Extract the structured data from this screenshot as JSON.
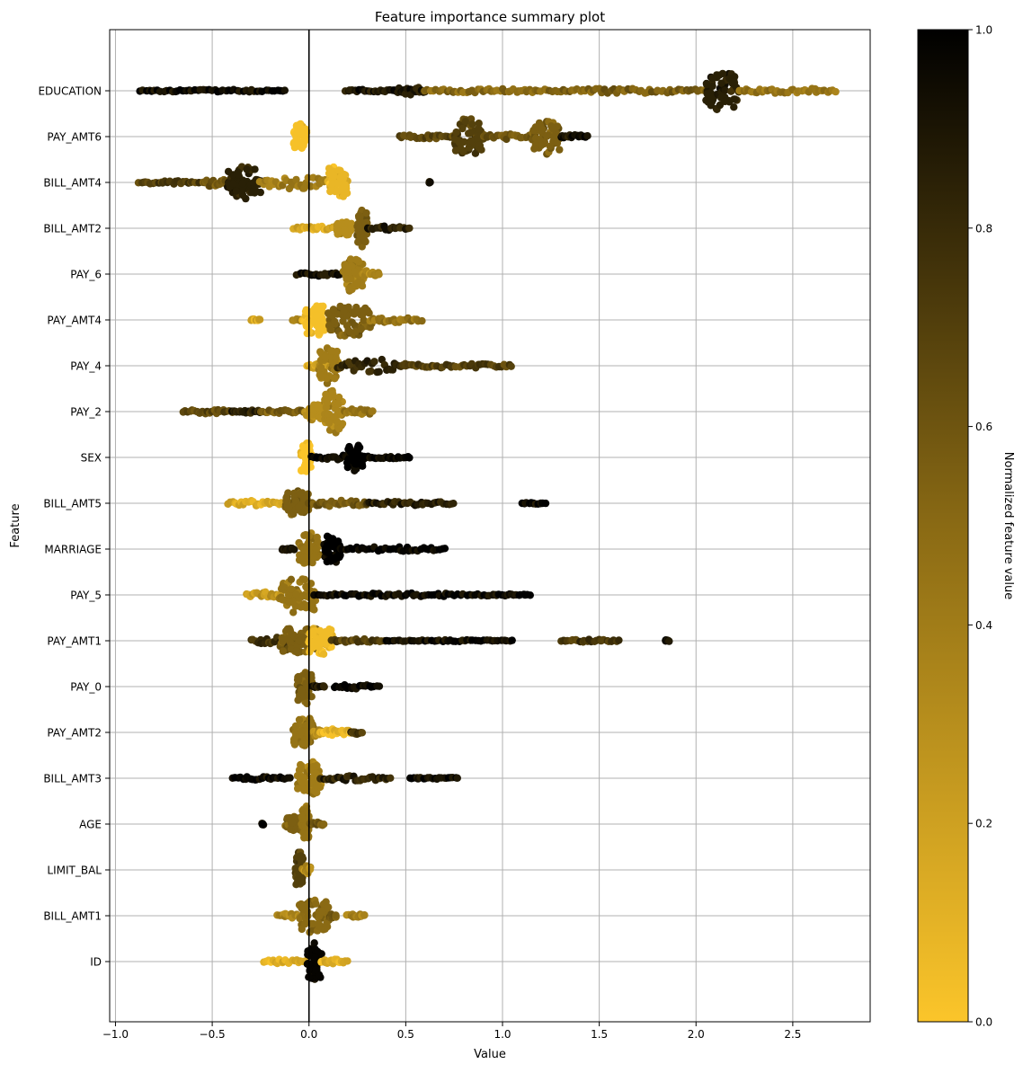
{
  "chart_data": {
    "type": "scatter",
    "title": "Feature importance summary plot",
    "xlabel": "Value",
    "ylabel": "Feature",
    "xlim": [
      -1.03,
      2.9
    ],
    "xticks": [
      -1.0,
      -0.5,
      0.0,
      0.5,
      1.0,
      1.5,
      2.0,
      2.5
    ],
    "xtick_labels": [
      "−1.0",
      "−0.5",
      "0.0",
      "0.5",
      "1.0",
      "1.5",
      "2.0",
      "2.5"
    ],
    "grid": true,
    "zero_line": 0.0,
    "colormap": {
      "low": "#fbc52a",
      "mid": "#8a6a14",
      "high": "#000000"
    },
    "colorbar": {
      "label": "Normalized feature value",
      "range": [
        0.0,
        1.0
      ],
      "ticks": [
        0.0,
        0.2,
        0.4,
        0.6,
        0.8,
        1.0
      ],
      "tick_labels": [
        "0.0",
        "0.2",
        "0.4",
        "0.6",
        "0.8",
        "1.0"
      ]
    },
    "features": [
      {
        "name": "EDUCATION",
        "clusters": [
          {
            "x": [
              -0.87,
              -0.12
            ],
            "v": 0.95,
            "w": 0.03
          },
          {
            "x": [
              0.19,
              0.45
            ],
            "v": 0.9,
            "w": 0.03
          },
          {
            "x": [
              0.45,
              0.6
            ],
            "v": 0.9,
            "w": 0.1
          },
          {
            "x": [
              0.6,
              1.3
            ],
            "v": 0.5,
            "w": 0.05
          },
          {
            "x": [
              1.3,
              2.05
            ],
            "v": 0.55,
            "w": 0.06
          },
          {
            "x": [
              2.05,
              2.22
            ],
            "v": 0.85,
            "w": 0.5
          },
          {
            "x": [
              2.22,
              2.72
            ],
            "v": 0.45,
            "w": 0.06
          }
        ]
      },
      {
        "name": "PAY_AMT6",
        "clusters": [
          {
            "x": [
              -0.08,
              -0.01
            ],
            "v": 0.02,
            "w": 0.35
          },
          {
            "x": [
              0.47,
              0.75
            ],
            "v": 0.65,
            "w": 0.05
          },
          {
            "x": [
              0.75,
              0.9
            ],
            "v": 0.7,
            "w": 0.45
          },
          {
            "x": [
              0.9,
              1.15
            ],
            "v": 0.6,
            "w": 0.06
          },
          {
            "x": [
              1.15,
              1.3
            ],
            "v": 0.55,
            "w": 0.4
          },
          {
            "x": [
              1.3,
              1.44
            ],
            "v": 0.9,
            "w": 0.04
          }
        ]
      },
      {
        "name": "BILL_AMT4",
        "clusters": [
          {
            "x": [
              -0.88,
              -0.55
            ],
            "v": 0.7,
            "w": 0.04
          },
          {
            "x": [
              -0.55,
              -0.42
            ],
            "v": 0.6,
            "w": 0.1
          },
          {
            "x": [
              -0.42,
              -0.25
            ],
            "v": 0.85,
            "w": 0.38
          },
          {
            "x": [
              -0.25,
              0.1
            ],
            "v": 0.4,
            "w": 0.15
          },
          {
            "x": [
              0.1,
              0.2
            ],
            "v": 0.08,
            "w": 0.42
          },
          {
            "x": [
              0.62,
              0.63
            ],
            "v": 0.9,
            "w": 0.02
          }
        ]
      },
      {
        "name": "BILL_AMT2",
        "clusters": [
          {
            "x": [
              -0.08,
              0.14
            ],
            "v": 0.15,
            "w": 0.05
          },
          {
            "x": [
              0.14,
              0.22
            ],
            "v": 0.3,
            "w": 0.2
          },
          {
            "x": [
              0.25,
              0.3
            ],
            "v": 0.55,
            "w": 0.45
          },
          {
            "x": [
              0.3,
              0.52
            ],
            "v": 0.85,
            "w": 0.05
          }
        ]
      },
      {
        "name": "PAY_6",
        "clusters": [
          {
            "x": [
              -0.06,
              0.16
            ],
            "v": 0.9,
            "w": 0.05
          },
          {
            "x": [
              0.18,
              0.28
            ],
            "v": 0.4,
            "w": 0.45
          },
          {
            "x": [
              0.28,
              0.36
            ],
            "v": 0.3,
            "w": 0.1
          }
        ]
      },
      {
        "name": "PAY_AMT4",
        "clusters": [
          {
            "x": [
              -0.3,
              -0.25
            ],
            "v": 0.15,
            "w": 0.03
          },
          {
            "x": [
              -0.08,
              -0.02
            ],
            "v": 0.4,
            "w": 0.03
          },
          {
            "x": [
              -0.03,
              0.08
            ],
            "v": 0.03,
            "w": 0.4
          },
          {
            "x": [
              0.1,
              0.32
            ],
            "v": 0.55,
            "w": 0.4
          },
          {
            "x": [
              0.32,
              0.58
            ],
            "v": 0.45,
            "w": 0.06
          }
        ]
      },
      {
        "name": "PAY_4",
        "clusters": [
          {
            "x": [
              -0.01,
              0.1
            ],
            "v": 0.15,
            "w": 0.08
          },
          {
            "x": [
              0.05,
              0.15
            ],
            "v": 0.4,
            "w": 0.45
          },
          {
            "x": [
              0.15,
              0.5
            ],
            "v": 0.8,
            "w": 0.15
          },
          {
            "x": [
              0.5,
              1.05
            ],
            "v": 0.7,
            "w": 0.05
          }
        ]
      },
      {
        "name": "PAY_2",
        "clusters": [
          {
            "x": [
              -0.65,
              -0.4
            ],
            "v": 0.65,
            "w": 0.05
          },
          {
            "x": [
              -0.4,
              -0.25
            ],
            "v": 0.85,
            "w": 0.05
          },
          {
            "x": [
              -0.25,
              0.0
            ],
            "v": 0.55,
            "w": 0.04
          },
          {
            "x": [
              -0.02,
              0.08
            ],
            "v": 0.3,
            "w": 0.2
          },
          {
            "x": [
              0.08,
              0.18
            ],
            "v": 0.35,
            "w": 0.5
          },
          {
            "x": [
              0.18,
              0.33
            ],
            "v": 0.45,
            "w": 0.08
          }
        ]
      },
      {
        "name": "SEX",
        "clusters": [
          {
            "x": [
              -0.04,
              0.01
            ],
            "v": 0.0,
            "w": 0.45
          },
          {
            "x": [
              0.01,
              0.3
            ],
            "v": 1.0,
            "w": 0.08
          },
          {
            "x": [
              0.2,
              0.28
            ],
            "v": 1.0,
            "w": 0.32
          },
          {
            "x": [
              0.3,
              0.52
            ],
            "v": 1.0,
            "w": 0.03
          }
        ]
      },
      {
        "name": "BILL_AMT5",
        "clusters": [
          {
            "x": [
              -0.42,
              -0.12
            ],
            "v": 0.15,
            "w": 0.06
          },
          {
            "x": [
              -0.12,
              0.0
            ],
            "v": 0.55,
            "w": 0.32
          },
          {
            "x": [
              0.0,
              0.3
            ],
            "v": 0.6,
            "w": 0.08
          },
          {
            "x": [
              0.3,
              0.75
            ],
            "v": 0.85,
            "w": 0.05
          },
          {
            "x": [
              1.1,
              1.22
            ],
            "v": 0.95,
            "w": 0.02
          }
        ]
      },
      {
        "name": "MARRIAGE",
        "clusters": [
          {
            "x": [
              -0.14,
              -0.08
            ],
            "v": 0.95,
            "w": 0.03
          },
          {
            "x": [
              -0.05,
              0.05
            ],
            "v": 0.45,
            "w": 0.4
          },
          {
            "x": [
              0.08,
              0.16
            ],
            "v": 1.0,
            "w": 0.38
          },
          {
            "x": [
              0.16,
              0.7
            ],
            "v": 1.0,
            "w": 0.06
          }
        ]
      },
      {
        "name": "PAY_5",
        "clusters": [
          {
            "x": [
              -0.32,
              -0.15
            ],
            "v": 0.25,
            "w": 0.07
          },
          {
            "x": [
              -0.15,
              0.03
            ],
            "v": 0.45,
            "w": 0.45
          },
          {
            "x": [
              0.03,
              0.95
            ],
            "v": 0.95,
            "w": 0.04
          },
          {
            "x": [
              0.95,
              1.14
            ],
            "v": 0.95,
            "w": 0.02
          }
        ]
      },
      {
        "name": "PAY_AMT1",
        "clusters": [
          {
            "x": [
              -0.3,
              -0.05
            ],
            "v": 0.75,
            "w": 0.08
          },
          {
            "x": [
              -0.15,
              0.05
            ],
            "v": 0.55,
            "w": 0.35
          },
          {
            "x": [
              0.0,
              0.12
            ],
            "v": 0.05,
            "w": 0.35
          },
          {
            "x": [
              0.12,
              0.4
            ],
            "v": 0.7,
            "w": 0.04
          },
          {
            "x": [
              0.4,
              1.05
            ],
            "v": 0.95,
            "w": 0.02
          },
          {
            "x": [
              1.3,
              1.6
            ],
            "v": 0.75,
            "w": 0.03
          },
          {
            "x": [
              1.84,
              1.86
            ],
            "v": 0.95,
            "w": 0.02
          }
        ]
      },
      {
        "name": "PAY_0",
        "clusters": [
          {
            "x": [
              -0.06,
              0.02
            ],
            "v": 0.55,
            "w": 0.4
          },
          {
            "x": [
              0.02,
              0.08
            ],
            "v": 0.9,
            "w": 0.03
          },
          {
            "x": [
              0.13,
              0.36
            ],
            "v": 1.0,
            "w": 0.05
          }
        ]
      },
      {
        "name": "PAY_AMT2",
        "clusters": [
          {
            "x": [
              -0.08,
              0.02
            ],
            "v": 0.45,
            "w": 0.4
          },
          {
            "x": [
              0.02,
              0.06
            ],
            "v": 0.3,
            "w": 0.1
          },
          {
            "x": [
              0.06,
              0.22
            ],
            "v": 0.08,
            "w": 0.08
          },
          {
            "x": [
              0.22,
              0.27
            ],
            "v": 0.75,
            "w": 0.04
          }
        ]
      },
      {
        "name": "BILL_AMT3",
        "clusters": [
          {
            "x": [
              -0.39,
              -0.1
            ],
            "v": 0.95,
            "w": 0.04
          },
          {
            "x": [
              -0.06,
              0.06
            ],
            "v": 0.4,
            "w": 0.42
          },
          {
            "x": [
              0.06,
              0.42
            ],
            "v": 0.85,
            "w": 0.06
          },
          {
            "x": [
              0.52,
              0.77
            ],
            "v": 0.95,
            "w": 0.03
          }
        ]
      },
      {
        "name": "AGE",
        "clusters": [
          {
            "x": [
              -0.24,
              -0.24
            ],
            "v": 0.95,
            "w": 0.02
          },
          {
            "x": [
              -0.12,
              -0.04
            ],
            "v": 0.55,
            "w": 0.2
          },
          {
            "x": [
              -0.04,
              0.0
            ],
            "v": 0.45,
            "w": 0.42
          },
          {
            "x": [
              0.0,
              0.08
            ],
            "v": 0.6,
            "w": 0.05
          }
        ]
      },
      {
        "name": "LIMIT_BAL",
        "clusters": [
          {
            "x": [
              -0.07,
              -0.03
            ],
            "v": 0.7,
            "w": 0.42
          },
          {
            "x": [
              -0.03,
              0.01
            ],
            "v": 0.3,
            "w": 0.12
          }
        ]
      },
      {
        "name": "BILL_AMT1",
        "clusters": [
          {
            "x": [
              -0.16,
              -0.05
            ],
            "v": 0.35,
            "w": 0.06
          },
          {
            "x": [
              -0.05,
              0.1
            ],
            "v": 0.5,
            "w": 0.4
          },
          {
            "x": [
              0.1,
              0.14
            ],
            "v": 0.6,
            "w": 0.05
          },
          {
            "x": [
              0.2,
              0.29
            ],
            "v": 0.35,
            "w": 0.04
          }
        ]
      },
      {
        "name": "ID",
        "clusters": [
          {
            "x": [
              -0.23,
              -0.01
            ],
            "v": 0.1,
            "w": 0.05
          },
          {
            "x": [
              -0.01,
              0.06
            ],
            "v": 0.98,
            "w": 0.48
          },
          {
            "x": [
              0.06,
              0.2
            ],
            "v": 0.1,
            "w": 0.05
          }
        ]
      }
    ]
  }
}
